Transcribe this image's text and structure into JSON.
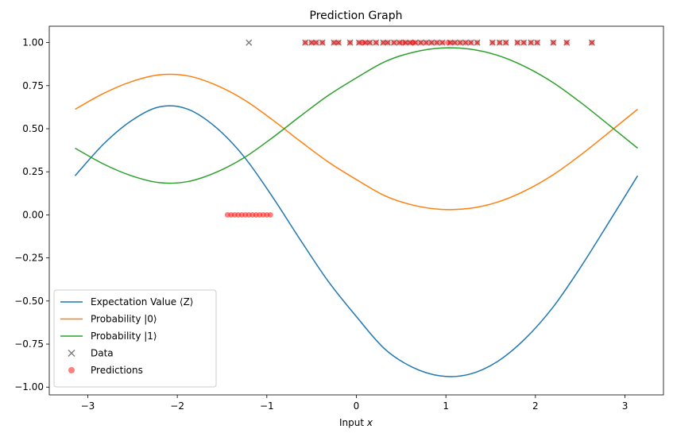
{
  "chart_data": {
    "type": "line",
    "title": "Prediction Graph",
    "xlabel": "Input x",
    "ylabel": "",
    "xlim": [
      -3.43,
      3.43
    ],
    "ylim": [
      -1.045,
      1.095
    ],
    "grid": false,
    "legend_position": "lower-left",
    "x_ticks": [
      -3,
      -2,
      -1,
      0,
      1,
      2,
      3
    ],
    "x_tick_labels": [
      "−3",
      "−2",
      "−1",
      "0",
      "1",
      "2",
      "3"
    ],
    "y_ticks": [
      -1.0,
      -0.75,
      -0.5,
      -0.25,
      0.0,
      0.25,
      0.5,
      0.75,
      1.0
    ],
    "y_tick_labels": [
      "−1.00",
      "−0.75",
      "−0.50",
      "−0.25",
      "0.00",
      "0.25",
      "0.50",
      "0.75",
      "1.00"
    ],
    "x": [
      -3.1416,
      -2.8274,
      -2.5133,
      -2.1991,
      -1.885,
      -1.5708,
      -1.2566,
      -0.9425,
      -0.6283,
      -0.3142,
      0.0,
      0.3142,
      0.6283,
      0.9425,
      1.2566,
      1.5708,
      1.885,
      2.1991,
      2.5133,
      2.8274,
      3.1416
    ],
    "series": [
      {
        "name": "Expectation Value ⟨Z⟩",
        "color": "#1f77b4",
        "values": [
          0.227,
          0.409,
          0.546,
          0.627,
          0.614,
          0.509,
          0.339,
          0.109,
          -0.143,
          -0.386,
          -0.59,
          -0.777,
          -0.885,
          -0.935,
          -0.926,
          -0.853,
          -0.719,
          -0.534,
          -0.297,
          -0.037,
          0.227
        ]
      },
      {
        "name": "Probability |0⟩",
        "color": "#ff7f0e",
        "values": [
          0.613,
          0.704,
          0.773,
          0.813,
          0.807,
          0.754,
          0.669,
          0.554,
          0.428,
          0.307,
          0.205,
          0.112,
          0.057,
          0.032,
          0.037,
          0.073,
          0.14,
          0.233,
          0.351,
          0.481,
          0.613
        ]
      },
      {
        "name": "Probability |1⟩",
        "color": "#2ca02c",
        "values": [
          0.387,
          0.296,
          0.227,
          0.187,
          0.193,
          0.246,
          0.331,
          0.446,
          0.572,
          0.693,
          0.795,
          0.888,
          0.943,
          0.968,
          0.963,
          0.927,
          0.86,
          0.767,
          0.649,
          0.519,
          0.387
        ]
      }
    ],
    "scatter_series": [
      {
        "name": "Data",
        "marker": "x",
        "color": "#7f7f7f",
        "points": [
          [
            -1.2,
            1.0
          ],
          [
            -0.57,
            1.0
          ],
          [
            -0.5,
            1.0
          ],
          [
            -0.45,
            1.0
          ],
          [
            -0.38,
            1.0
          ],
          [
            -0.25,
            1.0
          ],
          [
            -0.2,
            1.0
          ],
          [
            -0.07,
            1.0
          ],
          [
            0.03,
            1.0
          ],
          [
            0.1,
            1.0
          ],
          [
            0.15,
            1.0
          ],
          [
            0.22,
            1.0
          ],
          [
            0.3,
            1.0
          ],
          [
            0.35,
            1.0
          ],
          [
            0.42,
            1.0
          ],
          [
            0.48,
            1.0
          ],
          [
            0.55,
            1.0
          ],
          [
            0.6,
            1.0
          ],
          [
            0.66,
            1.0
          ],
          [
            0.72,
            1.0
          ],
          [
            0.78,
            1.0
          ],
          [
            0.84,
            1.0
          ],
          [
            0.9,
            1.0
          ],
          [
            0.96,
            1.0
          ],
          [
            1.05,
            1.0
          ],
          [
            1.1,
            1.0
          ],
          [
            1.16,
            1.0
          ],
          [
            1.22,
            1.0
          ],
          [
            1.28,
            1.0
          ],
          [
            1.35,
            1.0
          ],
          [
            1.52,
            1.0
          ],
          [
            1.6,
            1.0
          ],
          [
            1.67,
            1.0
          ],
          [
            1.8,
            1.0
          ],
          [
            1.87,
            1.0
          ],
          [
            1.95,
            1.0
          ],
          [
            2.02,
            1.0
          ],
          [
            2.2,
            1.0
          ],
          [
            2.35,
            1.0
          ],
          [
            2.63,
            1.0
          ]
        ]
      },
      {
        "name": "Predictions",
        "marker": "o",
        "color": "#ff0000",
        "points": [
          [
            -1.44,
            0.0
          ],
          [
            -1.4,
            0.0
          ],
          [
            -1.36,
            0.0
          ],
          [
            -1.32,
            0.0
          ],
          [
            -1.28,
            0.0
          ],
          [
            -1.24,
            0.0
          ],
          [
            -1.2,
            0.0
          ],
          [
            -1.16,
            0.0
          ],
          [
            -1.12,
            0.0
          ],
          [
            -1.08,
            0.0
          ],
          [
            -1.04,
            0.0
          ],
          [
            -1.0,
            0.0
          ],
          [
            -0.96,
            0.0
          ],
          [
            -0.57,
            1.0
          ],
          [
            -0.5,
            1.0
          ],
          [
            -0.45,
            1.0
          ],
          [
            -0.38,
            1.0
          ],
          [
            -0.25,
            1.0
          ],
          [
            -0.2,
            1.0
          ],
          [
            -0.07,
            1.0
          ],
          [
            0.03,
            1.0
          ],
          [
            0.07,
            1.0
          ],
          [
            0.1,
            1.0
          ],
          [
            0.15,
            1.0
          ],
          [
            0.22,
            1.0
          ],
          [
            0.3,
            1.0
          ],
          [
            0.35,
            1.0
          ],
          [
            0.42,
            1.0
          ],
          [
            0.48,
            1.0
          ],
          [
            0.52,
            1.0
          ],
          [
            0.55,
            1.0
          ],
          [
            0.6,
            1.0
          ],
          [
            0.63,
            1.0
          ],
          [
            0.66,
            1.0
          ],
          [
            0.72,
            1.0
          ],
          [
            0.78,
            1.0
          ],
          [
            0.84,
            1.0
          ],
          [
            0.9,
            1.0
          ],
          [
            0.96,
            1.0
          ],
          [
            1.02,
            1.0
          ],
          [
            1.05,
            1.0
          ],
          [
            1.1,
            1.0
          ],
          [
            1.16,
            1.0
          ],
          [
            1.22,
            1.0
          ],
          [
            1.28,
            1.0
          ],
          [
            1.35,
            1.0
          ],
          [
            1.52,
            1.0
          ],
          [
            1.6,
            1.0
          ],
          [
            1.67,
            1.0
          ],
          [
            1.8,
            1.0
          ],
          [
            1.87,
            1.0
          ],
          [
            1.95,
            1.0
          ],
          [
            2.02,
            1.0
          ],
          [
            2.2,
            1.0
          ],
          [
            2.35,
            1.0
          ],
          [
            2.63,
            1.0
          ]
        ]
      }
    ],
    "legend": [
      {
        "label": "Expectation Value ⟨Z⟩",
        "kind": "line",
        "color": "#1f77b4"
      },
      {
        "label": "Probability |0⟩",
        "kind": "line",
        "color": "#ff7f0e"
      },
      {
        "label": "Probability |1⟩",
        "kind": "line",
        "color": "#2ca02c"
      },
      {
        "label": "Data",
        "kind": "x",
        "color": "#7f7f7f"
      },
      {
        "label": "Predictions",
        "kind": "o",
        "color": "#ff0000"
      }
    ]
  }
}
